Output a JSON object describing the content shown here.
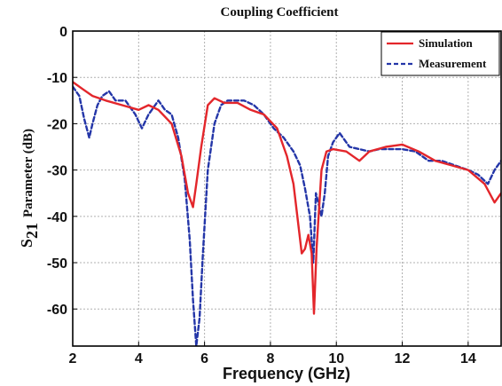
{
  "chart_data": {
    "type": "line",
    "title": "Coupling Coefficient",
    "xlabel": "Frequency (GHz)",
    "ylabel": {
      "main": "S",
      "subscript": "21",
      "rest": "Parameter (dB)"
    },
    "xlim": [
      2,
      15
    ],
    "ylim": [
      -68,
      0
    ],
    "xticks": [
      2,
      4,
      6,
      8,
      10,
      12,
      14
    ],
    "yticks": [
      0,
      -10,
      -20,
      -30,
      -40,
      -50,
      -60
    ],
    "grid": true,
    "legend_position": "top-right",
    "series": [
      {
        "name": "Simulation",
        "color": "#e3262b",
        "style": "solid",
        "x": [
          2.0,
          2.3,
          2.6,
          3.0,
          3.5,
          4.0,
          4.3,
          4.6,
          5.0,
          5.3,
          5.5,
          5.65,
          5.75,
          5.9,
          6.1,
          6.3,
          6.6,
          7.0,
          7.4,
          7.8,
          8.2,
          8.5,
          8.7,
          8.85,
          8.95,
          9.05,
          9.15,
          9.25,
          9.32,
          9.4,
          9.55,
          9.7,
          9.9,
          10.3,
          10.7,
          11.0,
          11.5,
          12.0,
          12.5,
          13.0,
          13.5,
          14.0,
          14.5,
          14.8,
          15.0
        ],
        "y": [
          -11,
          -12.5,
          -14,
          -15,
          -16,
          -17,
          -16,
          -17,
          -20,
          -27,
          -35,
          -38,
          -33,
          -25,
          -16,
          -14.5,
          -15.5,
          -15.5,
          -17,
          -18,
          -21,
          -27,
          -33,
          -42,
          -48,
          -47,
          -44,
          -48,
          -61,
          -47,
          -30,
          -26,
          -25.5,
          -26,
          -28,
          -26,
          -25,
          -24.5,
          -26,
          -28,
          -29,
          -30,
          -33,
          -37,
          -35
        ]
      },
      {
        "name": "Measurement",
        "color": "#2436a8",
        "style": "dashed",
        "x": [
          2.0,
          2.2,
          2.35,
          2.5,
          2.6,
          2.75,
          2.9,
          3.1,
          3.3,
          3.6,
          3.9,
          4.1,
          4.3,
          4.6,
          4.8,
          5.0,
          5.2,
          5.4,
          5.55,
          5.65,
          5.75,
          5.85,
          5.95,
          6.1,
          6.3,
          6.5,
          6.7,
          6.9,
          7.2,
          7.5,
          7.8,
          8.1,
          8.4,
          8.7,
          8.9,
          9.05,
          9.2,
          9.3,
          9.38,
          9.45,
          9.55,
          9.65,
          9.75,
          9.9,
          10.1,
          10.4,
          10.7,
          11.0,
          11.3,
          11.6,
          12.0,
          12.4,
          12.8,
          13.2,
          13.6,
          14.0,
          14.3,
          14.6,
          14.8,
          15.0
        ],
        "y": [
          -12,
          -14,
          -19,
          -23,
          -20,
          -16,
          -14,
          -13,
          -15,
          -15,
          -18,
          -21,
          -18,
          -15,
          -17,
          -18,
          -23,
          -32,
          -45,
          -58,
          -68,
          -62,
          -48,
          -30,
          -20,
          -16,
          -15,
          -15,
          -15,
          -16,
          -18,
          -21,
          -23,
          -26,
          -29,
          -34,
          -40,
          -50,
          -35,
          -37,
          -40,
          -35,
          -27,
          -24,
          -22,
          -25,
          -25.5,
          -26,
          -25.5,
          -25.5,
          -25.5,
          -26,
          -28,
          -28,
          -29,
          -30,
          -31,
          -33,
          -30,
          -28
        ]
      }
    ]
  }
}
